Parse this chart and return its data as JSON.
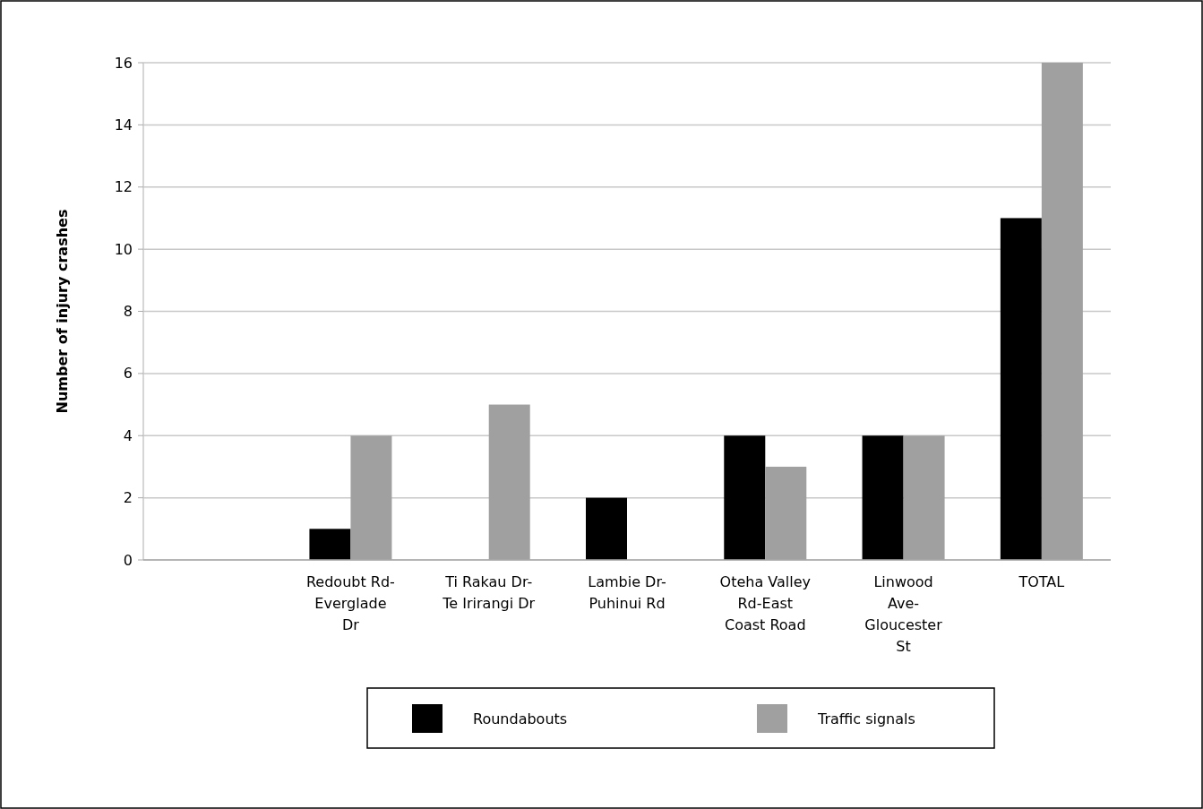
{
  "chart_data": {
    "type": "bar",
    "ylabel": "Number of injury crashes",
    "categories": [
      null,
      "Redoubt Rd-Everglade Dr",
      "Ti Rakau Dr-Te Irirangi Dr",
      "Lambie Dr-Puhinui Rd",
      "Oteha Valley Rd-East Coast Road",
      "Linwood Ave-Gloucester St",
      "TOTAL"
    ],
    "series": [
      {
        "name": "Roundabouts",
        "color": "#000000",
        "values": [
          null,
          1,
          0,
          2,
          4,
          4,
          11
        ]
      },
      {
        "name": "Traffic signals",
        "color": "#a0a0a0",
        "values": [
          null,
          4,
          5,
          0,
          3,
          4,
          16
        ]
      }
    ],
    "ylim": [
      0,
      16
    ],
    "yticks": [
      0,
      2,
      4,
      6,
      8,
      10,
      12,
      14,
      16
    ],
    "grid": "y",
    "legend": "bottom"
  }
}
